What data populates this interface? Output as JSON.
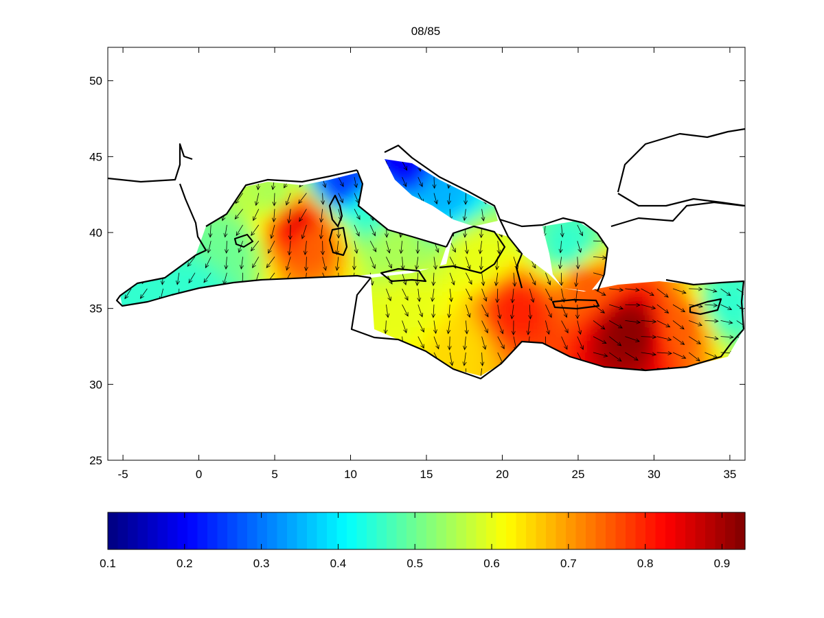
{
  "chart_data": [
    {
      "type": "heatmap",
      "title": "08/85",
      "xlabel": "",
      "ylabel": "",
      "xlim": [
        -6,
        36
      ],
      "ylim": [
        25,
        52.2
      ],
      "xticks": [
        "-5",
        "0",
        "5",
        "10",
        "15",
        "20",
        "25",
        "30",
        "35"
      ],
      "xtick_values": [
        -5,
        0,
        5,
        10,
        15,
        20,
        25,
        30,
        35
      ],
      "yticks": [
        "25",
        "30",
        "35",
        "40",
        "45",
        "50"
      ],
      "ytick_values": [
        25,
        30,
        35,
        40,
        45,
        50
      ],
      "grid": false,
      "variable_range": [
        0.1,
        0.93
      ],
      "field_samples": [
        {
          "lon": -4.5,
          "lat": 35.9,
          "value": 0.45
        },
        {
          "lon": 0,
          "lat": 36.2,
          "value": 0.45
        },
        {
          "lon": 2,
          "lat": 39,
          "value": 0.5
        },
        {
          "lon": 5,
          "lat": 42.5,
          "value": 0.55
        },
        {
          "lon": 6.5,
          "lat": 40.7,
          "value": 0.85
        },
        {
          "lon": 7.5,
          "lat": 39.5,
          "value": 0.75
        },
        {
          "lon": 9.5,
          "lat": 43.3,
          "value": 0.25
        },
        {
          "lon": 11.5,
          "lat": 41.5,
          "value": 0.45
        },
        {
          "lon": 13,
          "lat": 39.5,
          "value": 0.55
        },
        {
          "lon": 13.5,
          "lat": 44.5,
          "value": 0.2
        },
        {
          "lon": 16,
          "lat": 42.5,
          "value": 0.35
        },
        {
          "lon": 18.5,
          "lat": 38.5,
          "value": 0.6
        },
        {
          "lon": 14,
          "lat": 35,
          "value": 0.6
        },
        {
          "lon": 17,
          "lat": 32.5,
          "value": 0.65
        },
        {
          "lon": 21,
          "lat": 35,
          "value": 0.8
        },
        {
          "lon": 24.5,
          "lat": 39,
          "value": 0.45
        },
        {
          "lon": 25.5,
          "lat": 36.8,
          "value": 0.75
        },
        {
          "lon": 28.5,
          "lat": 33.5,
          "value": 0.92
        },
        {
          "lon": 32,
          "lat": 34,
          "value": 0.75
        },
        {
          "lon": 34.8,
          "lat": 35.2,
          "value": 0.45
        }
      ],
      "vector_field": "wind arrows pointing predominantly south to southwest",
      "colorbar": {
        "orientation": "horizontal",
        "colormap": "jet",
        "range": [
          0.1,
          0.93
        ],
        "ticks": [
          "0.1",
          "0.2",
          "0.3",
          "0.4",
          "0.5",
          "0.6",
          "0.7",
          "0.8",
          "0.9"
        ],
        "tick_values": [
          0.1,
          0.2,
          0.3,
          0.4,
          0.5,
          0.6,
          0.7,
          0.8,
          0.9
        ]
      }
    }
  ]
}
